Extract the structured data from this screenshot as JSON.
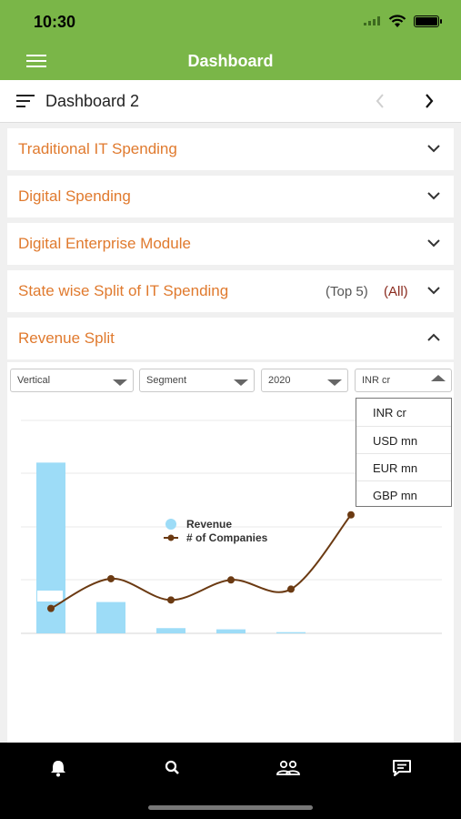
{
  "status": {
    "time": "10:30"
  },
  "appbar": {
    "title": "Dashboard"
  },
  "subbar": {
    "title": "Dashboard 2"
  },
  "sections": [
    {
      "label": "Traditional IT Spending"
    },
    {
      "label": "Digital Spending"
    },
    {
      "label": "Digital Enterprise Module"
    },
    {
      "label": "State wise Split of IT Spending",
      "filter_top": "(Top 5)",
      "filter_all": "(All)"
    },
    {
      "label": "Revenue Split"
    }
  ],
  "filters": {
    "orientation": "Vertical",
    "dimension": "Segment",
    "year": "2020",
    "currency": "INR cr"
  },
  "currency_options": [
    "INR cr",
    "USD mn",
    "EUR mn",
    "GBP mn"
  ],
  "chart_data": {
    "type": "bar",
    "bars_color": "#9ddcf7",
    "line_color": "#6b3a12",
    "legend": {
      "position": "center",
      "items": [
        "Revenue",
        "# of Companies"
      ]
    },
    "grid": true,
    "series": [
      {
        "name": "Revenue",
        "type": "bar",
        "values": [
          4.25,
          0.78,
          0.13,
          0.1,
          0.03,
          0,
          0
        ]
      },
      {
        "name": "# of Companies",
        "type": "line",
        "values": [
          0.62,
          1.36,
          0.83,
          1.33,
          1.1,
          2.95
        ]
      }
    ],
    "ylim": [
      0,
      5.3
    ]
  },
  "nav": {
    "items": [
      "bell-icon",
      "search-icon",
      "people-icon",
      "chat-icon"
    ]
  }
}
